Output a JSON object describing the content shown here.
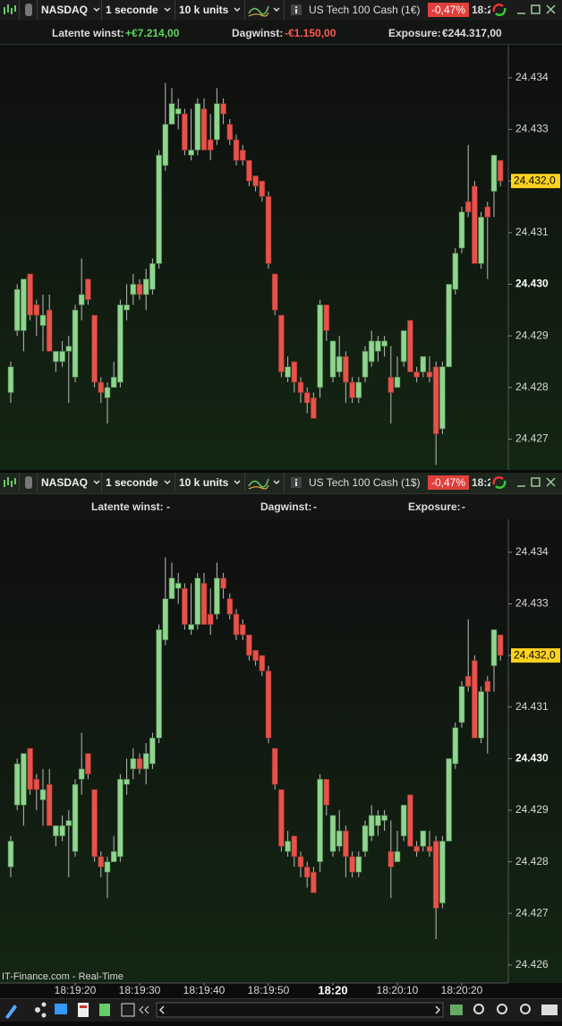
{
  "chart_data": [
    {
      "type": "candlestick",
      "open": [
        24427.9,
        24429.1,
        24429.1,
        24430.2,
        24429.6,
        24429.2,
        24429.5,
        24428.5,
        24428.5,
        24428.7,
        24428.2,
        24429.6,
        24430.1,
        24429.4,
        24428.1,
        24427.8,
        24428.0,
        24428.1,
        24429.5,
        24429.8,
        24430.0,
        24429.8,
        24429.9,
        24430.4,
        24432.3,
        24433.1,
        24433.3,
        24433.3,
        24432.5,
        24432.6,
        24433.4,
        24432.8,
        24432.8,
        24433.5,
        24433.1,
        24432.8,
        24432.6,
        24432.4,
        24432.1,
        24432.0,
        24431.7,
        24430.2,
        24429.4,
        24428.2,
        24428.5,
        24428.1,
        24427.9,
        24427.8,
        24428.0,
        24429.6,
        24428.2,
        24428.3,
        24428.6,
        24428.1,
        24427.8,
        24428.2,
        24428.5,
        24428.7,
        24428.8,
        24428.2,
        24428.0,
        24428.5,
        24429.3,
        24428.3,
        24428.3,
        24428.3,
        24428.4,
        24427.2,
        24428.4,
        24429.9,
        24430.7,
        24431.6,
        24431.9,
        24430.4,
        24431.5,
        24431.8,
        24432.4
      ],
      "high": [
        24428.5,
        24430.0,
        24430.1,
        24430.2,
        24429.7,
        24429.8,
        24429.8,
        24428.7,
        24428.9,
        24429.0,
        24429.6,
        24430.5,
        24430.1,
        24429.4,
        24428.2,
        24428.1,
        24428.5,
        24429.7,
        24430.0,
        24430.2,
        24430.1,
        24430.3,
        24430.5,
        24432.6,
        24433.9,
        24433.8,
        24433.6,
        24433.4,
        24433.4,
        24433.6,
        24433.6,
        24433.3,
        24433.8,
        24433.6,
        24433.2,
        24432.9,
        24432.7,
        24432.4,
        24432.1,
        24432.0,
        24431.8,
        24430.2,
        24429.4,
        24428.6,
        24428.5,
        24428.2,
        24428.0,
        24427.9,
        24429.7,
        24429.6,
        24428.9,
        24429.0,
        24428.7,
        24428.2,
        24428.2,
        24428.8,
        24429.1,
        24429.0,
        24429.0,
        24428.8,
        24428.6,
        24429.1,
        24429.3,
        24428.4,
        24428.6,
        24428.6,
        24428.5,
        24428.5,
        24430.0,
        24430.7,
        24431.5,
        24432.7,
        24432.0,
        24431.4,
        24431.6,
        24432.5,
        24432.4
      ],
      "low": [
        24427.7,
        24429.0,
        24428.7,
        24429.3,
        24429.0,
        24428.7,
        24428.7,
        24428.3,
        24428.4,
        24427.7,
        24428.1,
        24429.3,
        24429.6,
        24428.0,
        24427.7,
        24427.3,
        24428.0,
        24428.0,
        24429.3,
        24429.6,
        24429.7,
        24429.5,
        24429.8,
        24430.3,
        24432.2,
        24433.1,
        24433.0,
        24432.5,
        24432.4,
        24432.5,
        24432.6,
        24432.4,
        24432.7,
        24433.1,
        24432.7,
        24432.3,
        24432.3,
        24431.9,
        24431.8,
        24431.6,
        24430.3,
        24429.4,
        24428.2,
        24428.1,
        24427.9,
        24427.7,
        24427.5,
        24427.4,
        24427.8,
        24428.9,
        24428.1,
        24428.2,
        24427.7,
        24427.7,
        24427.7,
        24428.1,
        24428.4,
        24428.5,
        24428.6,
        24427.3,
        24428.0,
        24428.4,
        24428.3,
        24428.1,
        24428.2,
        24428.1,
        24426.5,
        24427.1,
        24428.4,
        24429.8,
        24430.6,
        24431.3,
        24430.4,
        24430.3,
        24430.1,
        24431.3,
        24431.9
      ],
      "close": [
        24428.4,
        24429.9,
        24430.1,
        24429.4,
        24429.4,
        24429.4,
        24428.7,
        24428.7,
        24428.7,
        24428.8,
        24429.5,
        24429.8,
        24429.7,
        24428.1,
        24427.9,
        24428.0,
        24428.2,
        24429.6,
        24429.6,
        24430.0,
        24429.8,
        24430.1,
        24430.4,
        24432.5,
        24433.1,
        24433.5,
        24433.4,
        24432.6,
        24432.6,
        24433.5,
        24432.6,
        24432.6,
        24433.5,
        24433.3,
        24432.8,
        24432.4,
        24432.4,
        24432.0,
        24431.9,
        24431.7,
        24430.4,
        24429.5,
        24428.3,
        24428.4,
        24428.1,
        24427.9,
        24427.7,
        24427.4,
        24429.6,
        24429.1,
        24428.9,
        24428.6,
        24428.1,
        24427.8,
        24428.1,
        24428.7,
        24428.9,
        24428.9,
        24428.9,
        24427.9,
        24428.2,
        24429.1,
        24428.3,
        24428.2,
        24428.6,
        24428.2,
        24427.1,
        24428.4,
        24430.0,
        24430.6,
        24431.4,
        24431.4,
        24430.4,
        24431.3,
        24431.3,
        24432.5,
        24432.0
      ],
      "up_color": "#8fd48f",
      "down_color": "#e5534b",
      "ylim": [
        24426.4,
        24434.64
      ],
      "yticks": [
        {
          "value": 24434,
          "label": "24.434"
        },
        {
          "value": 24433,
          "label": "24.433"
        },
        {
          "value": 24432,
          "label": "24.432"
        },
        {
          "value": 24431,
          "label": "24.431"
        },
        {
          "value": 24430,
          "label": "24.430"
        },
        {
          "value": 24429,
          "label": "24.429"
        },
        {
          "value": 24428,
          "label": "24.428"
        },
        {
          "value": 24427,
          "label": "24.427"
        }
      ],
      "last_price": {
        "value": 24432.0,
        "label": "24.432,0"
      }
    },
    {
      "type": "candlestick",
      "categories": [
        null,
        null,
        null,
        null,
        null,
        null,
        null,
        null,
        null,
        null,
        "18:19:20",
        null,
        null,
        null,
        null,
        null,
        null,
        null,
        null,
        null,
        "18:19:30",
        null,
        null,
        null,
        null,
        null,
        null,
        null,
        null,
        null,
        "18:19:40",
        null,
        null,
        null,
        null,
        null,
        null,
        null,
        null,
        null,
        "18:19:50",
        null,
        null,
        null,
        null,
        null,
        null,
        null,
        null,
        null,
        "18:20",
        null,
        null,
        null,
        null,
        null,
        null,
        null,
        null,
        null,
        "18:20:10",
        null,
        null,
        null,
        null,
        null,
        null,
        null,
        null,
        null,
        "18:20:20",
        null,
        null,
        null,
        null,
        null,
        null
      ],
      "open": [
        24427.9,
        24429.1,
        24429.1,
        24430.2,
        24429.6,
        24429.2,
        24429.5,
        24428.5,
        24428.5,
        24428.7,
        24428.2,
        24429.6,
        24430.1,
        24429.4,
        24428.1,
        24427.8,
        24428.0,
        24428.1,
        24429.5,
        24429.8,
        24430.0,
        24429.8,
        24429.9,
        24430.4,
        24432.3,
        24433.1,
        24433.3,
        24433.3,
        24432.5,
        24432.6,
        24433.4,
        24432.8,
        24432.8,
        24433.5,
        24433.1,
        24432.8,
        24432.6,
        24432.4,
        24432.1,
        24432.0,
        24431.7,
        24430.2,
        24429.4,
        24428.2,
        24428.5,
        24428.1,
        24427.9,
        24427.8,
        24428.0,
        24429.6,
        24428.2,
        24428.3,
        24428.6,
        24428.1,
        24427.8,
        24428.2,
        24428.5,
        24428.7,
        24428.8,
        24428.2,
        24428.0,
        24428.5,
        24429.3,
        24428.3,
        24428.3,
        24428.3,
        24428.4,
        24427.2,
        24428.4,
        24429.9,
        24430.7,
        24431.6,
        24431.9,
        24430.4,
        24431.5,
        24431.8,
        24432.4
      ],
      "high": [
        24428.5,
        24430.0,
        24430.1,
        24430.2,
        24429.7,
        24429.8,
        24429.8,
        24428.7,
        24428.9,
        24429.0,
        24429.6,
        24430.5,
        24430.1,
        24429.4,
        24428.2,
        24428.1,
        24428.5,
        24429.7,
        24430.0,
        24430.2,
        24430.1,
        24430.3,
        24430.5,
        24432.6,
        24433.9,
        24433.8,
        24433.6,
        24433.4,
        24433.4,
        24433.6,
        24433.6,
        24433.3,
        24433.8,
        24433.6,
        24433.2,
        24432.9,
        24432.7,
        24432.4,
        24432.1,
        24432.0,
        24431.8,
        24430.2,
        24429.4,
        24428.6,
        24428.5,
        24428.2,
        24428.0,
        24427.9,
        24429.7,
        24429.6,
        24428.9,
        24429.0,
        24428.7,
        24428.2,
        24428.2,
        24428.8,
        24429.1,
        24429.0,
        24429.0,
        24428.8,
        24428.6,
        24429.1,
        24429.3,
        24428.4,
        24428.6,
        24428.6,
        24428.5,
        24428.5,
        24430.0,
        24430.7,
        24431.5,
        24432.7,
        24432.0,
        24431.4,
        24431.6,
        24432.5,
        24432.4
      ],
      "low": [
        24427.7,
        24429.0,
        24428.7,
        24429.3,
        24429.0,
        24428.7,
        24428.7,
        24428.3,
        24428.4,
        24427.7,
        24428.1,
        24429.3,
        24429.6,
        24428.0,
        24427.7,
        24427.3,
        24428.0,
        24428.0,
        24429.3,
        24429.6,
        24429.7,
        24429.5,
        24429.8,
        24430.3,
        24432.2,
        24433.1,
        24433.0,
        24432.5,
        24432.4,
        24432.5,
        24432.6,
        24432.4,
        24432.7,
        24433.1,
        24432.7,
        24432.3,
        24432.3,
        24431.9,
        24431.8,
        24431.6,
        24430.3,
        24429.4,
        24428.2,
        24428.1,
        24427.9,
        24427.7,
        24427.5,
        24427.4,
        24427.8,
        24428.9,
        24428.1,
        24428.2,
        24427.7,
        24427.7,
        24427.7,
        24428.1,
        24428.4,
        24428.5,
        24428.6,
        24427.3,
        24428.0,
        24428.4,
        24428.3,
        24428.1,
        24428.2,
        24428.1,
        24426.5,
        24427.1,
        24428.4,
        24429.8,
        24430.6,
        24431.3,
        24430.4,
        24430.3,
        24430.1,
        24431.3,
        24431.9
      ],
      "close": [
        24428.4,
        24429.9,
        24430.1,
        24429.4,
        24429.4,
        24429.4,
        24428.7,
        24428.7,
        24428.7,
        24428.8,
        24429.5,
        24429.8,
        24429.7,
        24428.1,
        24427.9,
        24428.0,
        24428.2,
        24429.6,
        24429.6,
        24430.0,
        24429.8,
        24430.1,
        24430.4,
        24432.5,
        24433.1,
        24433.5,
        24433.4,
        24432.6,
        24432.6,
        24433.5,
        24432.6,
        24432.6,
        24433.5,
        24433.3,
        24432.8,
        24432.4,
        24432.4,
        24432.0,
        24431.9,
        24431.7,
        24430.4,
        24429.5,
        24428.3,
        24428.4,
        24428.1,
        24427.9,
        24427.7,
        24427.4,
        24429.6,
        24429.1,
        24428.9,
        24428.6,
        24428.1,
        24427.8,
        24428.1,
        24428.7,
        24428.9,
        24428.9,
        24428.9,
        24427.9,
        24428.2,
        24429.1,
        24428.3,
        24428.2,
        24428.6,
        24428.2,
        24427.1,
        24428.4,
        24430.0,
        24430.6,
        24431.4,
        24431.4,
        24430.4,
        24431.3,
        24431.3,
        24432.5,
        24432.0
      ],
      "up_color": "#8fd48f",
      "down_color": "#e5534b",
      "ylim": [
        24425.65,
        24434.64
      ],
      "yticks": [
        {
          "value": 24434,
          "label": "24.434"
        },
        {
          "value": 24433,
          "label": "24.433"
        },
        {
          "value": 24432,
          "label": "24.432"
        },
        {
          "value": 24431,
          "label": "24.431"
        },
        {
          "value": 24430,
          "label": "24.430"
        },
        {
          "value": 24429,
          "label": "24.429"
        },
        {
          "value": 24428,
          "label": "24.428"
        },
        {
          "value": 24427,
          "label": "24.427"
        },
        {
          "value": 24426,
          "label": "24.426"
        }
      ],
      "last_price": {
        "value": 24432.0,
        "label": "24.432,0"
      },
      "watermark": "IT-Finance.com - Real-Time"
    }
  ],
  "panes": [
    {
      "market": "NASDAQ",
      "interval": "1 seconde",
      "size": "10 k units",
      "instrument": "US Tech 100 Cash (1€)",
      "change": "-0,47%",
      "time": "18:2",
      "stats": [
        {
          "label": "Latente winst:",
          "value": "+€7.214,00"
        },
        {
          "label": "Dagwinst:",
          "value": "-€1.150,00"
        },
        {
          "label": "Exposure:",
          "value": "€244.317,00"
        }
      ]
    },
    {
      "market": "NASDAQ",
      "interval": "1 seconde",
      "size": "10 k units",
      "instrument": "US Tech 100 Cash (1$)",
      "change": "-0,47%",
      "time": "18:2",
      "stats": [
        {
          "label": "Latente winst:",
          "value": "-"
        },
        {
          "label": "Dagwinst:",
          "value": "-"
        },
        {
          "label": "Exposure:",
          "value": "-"
        }
      ]
    }
  ]
}
